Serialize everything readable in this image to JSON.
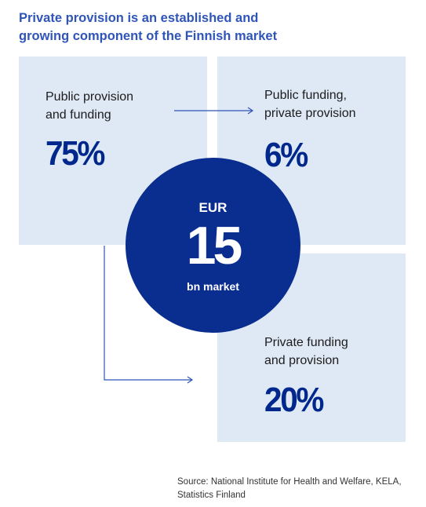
{
  "title": "Private provision is an established and\ngrowing component of the Finnish market",
  "segments": {
    "public": {
      "label": "Public provision\nand funding",
      "share": "75%"
    },
    "mixed": {
      "label": "Public funding,\nprivate provision",
      "share": "6%"
    },
    "private": {
      "label": "Private funding\nand provision",
      "share": "20%"
    }
  },
  "market": {
    "currency": "EUR",
    "value": "15",
    "unit": "bn market"
  },
  "source": "Source: National Institute for Health and Welfare, KELA,\nStatistics Finland",
  "colors": {
    "title": "#2f55b8",
    "panel": "#dfe9f5",
    "circle": "#0a2e8f",
    "percentage": "#00288c",
    "connector": "#2f55b8"
  }
}
